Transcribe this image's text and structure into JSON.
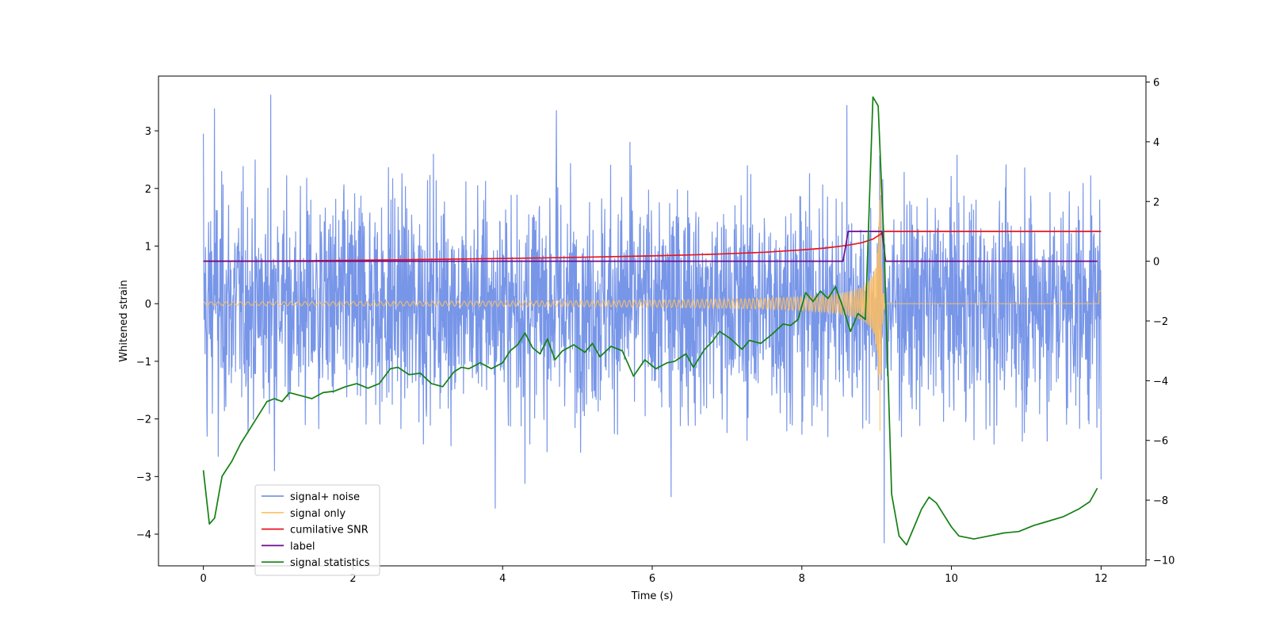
{
  "chart_data": {
    "type": "line",
    "title": "",
    "xlabel": "Time (s)",
    "ylabel": "Whitened strain",
    "y2label": "",
    "xlim": [
      -0.6,
      12.6
    ],
    "ylim": [
      -4.55,
      3.95
    ],
    "y2lim": [
      -10.2,
      6.2
    ],
    "xticks": [
      0,
      2,
      4,
      6,
      8,
      10,
      12
    ],
    "yticks": [
      -4,
      -3,
      -2,
      -1,
      0,
      1,
      2,
      3
    ],
    "y2ticks": [
      -10,
      -8,
      -6,
      -4,
      -2,
      0,
      2,
      4,
      6
    ],
    "grid": false,
    "legend_position": "lower-left",
    "series": [
      {
        "name": "signal+ noise",
        "axis": "left",
        "color": "#7896e8",
        "kind": "noise",
        "x_range": [
          0,
          12
        ],
        "noise_envelope": [
          -2.5,
          2.5
        ],
        "peaks": [
          [
            0.0,
            2.95
          ],
          [
            0.05,
            -2.3
          ],
          [
            0.15,
            3.38
          ],
          [
            0.2,
            -2.65
          ],
          [
            0.9,
            3.62
          ],
          [
            0.95,
            -2.9
          ],
          [
            4.72,
            3.35
          ],
          [
            3.9,
            -3.55
          ],
          [
            4.3,
            -3.12
          ],
          [
            6.25,
            -3.35
          ],
          [
            8.6,
            3.44
          ],
          [
            9.1,
            -4.15
          ],
          [
            12.0,
            -3.05
          ],
          [
            5.7,
            2.8
          ]
        ]
      },
      {
        "name": "signal only",
        "axis": "left",
        "color": "#ffbf60",
        "kind": "chirp",
        "x_range": [
          0,
          12
        ],
        "merger_time": 9.05,
        "peak_amplitude": 2.3
      },
      {
        "name": "cumilative SNR",
        "axis": "right",
        "color": "#e8141e",
        "x": [
          0,
          1,
          2,
          3,
          4,
          5,
          6,
          6.5,
          7,
          7.5,
          8,
          8.3,
          8.6,
          8.8,
          8.95,
          9.05,
          9.1,
          12
        ],
        "values": [
          0,
          0.01,
          0.03,
          0.06,
          0.09,
          0.13,
          0.18,
          0.21,
          0.25,
          0.3,
          0.38,
          0.44,
          0.53,
          0.62,
          0.74,
          0.9,
          1.0,
          1.0
        ]
      },
      {
        "name": "label",
        "axis": "right",
        "color": "#6e0a8c",
        "x": [
          0,
          8.55,
          8.62,
          9.07,
          9.12,
          11.95
        ],
        "values": [
          0,
          0,
          1,
          1,
          0,
          0
        ]
      },
      {
        "name": "signal statistics",
        "axis": "right",
        "color": "#138013",
        "x": [
          0,
          0.08,
          0.15,
          0.25,
          0.38,
          0.5,
          0.6,
          0.7,
          0.85,
          0.95,
          1.05,
          1.15,
          1.3,
          1.45,
          1.6,
          1.75,
          1.9,
          2.05,
          2.2,
          2.35,
          2.5,
          2.6,
          2.75,
          2.9,
          3.05,
          3.2,
          3.35,
          3.45,
          3.55,
          3.7,
          3.85,
          4.0,
          4.1,
          4.2,
          4.3,
          4.4,
          4.5,
          4.6,
          4.7,
          4.8,
          4.95,
          5.1,
          5.2,
          5.3,
          5.45,
          5.6,
          5.75,
          5.9,
          6.05,
          6.2,
          6.3,
          6.45,
          6.55,
          6.7,
          6.8,
          6.9,
          7.05,
          7.2,
          7.3,
          7.45,
          7.6,
          7.75,
          7.85,
          7.95,
          8.05,
          8.15,
          8.25,
          8.35,
          8.45,
          8.55,
          8.65,
          8.75,
          8.85,
          8.95,
          9.02,
          9.1,
          9.2,
          9.3,
          9.4,
          9.5,
          9.6,
          9.7,
          9.8,
          9.9,
          10.0,
          10.1,
          10.3,
          10.5,
          10.7,
          10.9,
          11.1,
          11.3,
          11.5,
          11.7,
          11.85,
          11.95
        ],
        "values": [
          -7.0,
          -8.8,
          -8.6,
          -7.2,
          -6.7,
          -6.1,
          -5.7,
          -5.3,
          -4.7,
          -4.6,
          -4.7,
          -4.4,
          -4.5,
          -4.6,
          -4.4,
          -4.35,
          -4.2,
          -4.1,
          -4.25,
          -4.1,
          -3.6,
          -3.55,
          -3.8,
          -3.75,
          -4.1,
          -4.2,
          -3.7,
          -3.55,
          -3.6,
          -3.4,
          -3.6,
          -3.4,
          -3.0,
          -2.8,
          -2.4,
          -2.9,
          -3.1,
          -2.6,
          -3.3,
          -3.0,
          -2.8,
          -3.05,
          -2.75,
          -3.2,
          -2.85,
          -3.0,
          -3.85,
          -3.3,
          -3.6,
          -3.4,
          -3.35,
          -3.1,
          -3.55,
          -2.95,
          -2.7,
          -2.35,
          -2.6,
          -2.95,
          -2.65,
          -2.75,
          -2.45,
          -2.1,
          -2.15,
          -1.95,
          -1.05,
          -1.35,
          -1.0,
          -1.25,
          -0.85,
          -1.55,
          -2.35,
          -1.75,
          -1.95,
          5.5,
          5.2,
          0.5,
          -7.8,
          -9.2,
          -9.5,
          -8.9,
          -8.3,
          -7.9,
          -8.1,
          -8.5,
          -8.9,
          -9.2,
          -9.3,
          -9.2,
          -9.1,
          -9.05,
          -8.85,
          -8.7,
          -8.55,
          -8.3,
          -8.05,
          -7.6
        ]
      }
    ]
  }
}
